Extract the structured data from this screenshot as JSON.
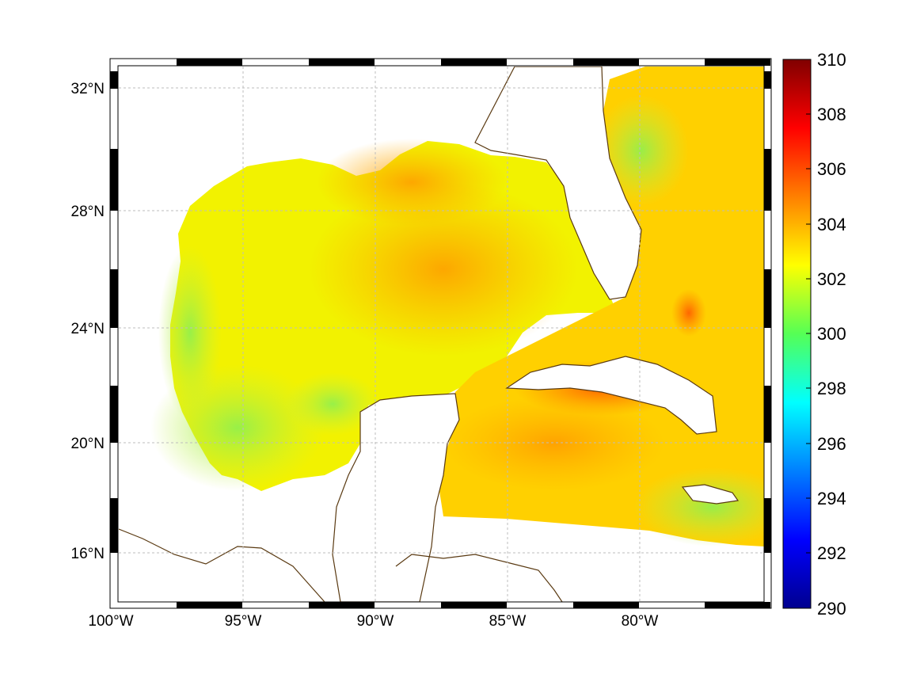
{
  "map": {
    "lon_range": [
      -100,
      -75
    ],
    "lat_range": [
      14.3,
      33
    ],
    "lon_ticks": [
      {
        "value": -100,
        "label": "100°W"
      },
      {
        "value": -95,
        "label": "95°W"
      },
      {
        "value": -90,
        "label": "90°W"
      },
      {
        "value": -85,
        "label": "85°W"
      },
      {
        "value": -80,
        "label": "80°W"
      }
    ],
    "lat_ticks": [
      {
        "value": 32,
        "label": "32°N"
      },
      {
        "value": 28,
        "label": "28°N"
      },
      {
        "value": 24,
        "label": "24°N"
      },
      {
        "value": 20,
        "label": "20°N"
      },
      {
        "value": 16,
        "label": "16°N"
      }
    ],
    "grid": true,
    "coastline_color": "#5a3a12",
    "frame_style": "alternating black and white border bars"
  },
  "colorbar": {
    "min": 290,
    "max": 310,
    "colormap": "jet",
    "ticks": [
      "290",
      "292",
      "294",
      "296",
      "298",
      "300",
      "302",
      "304",
      "306",
      "308",
      "310"
    ]
  }
}
